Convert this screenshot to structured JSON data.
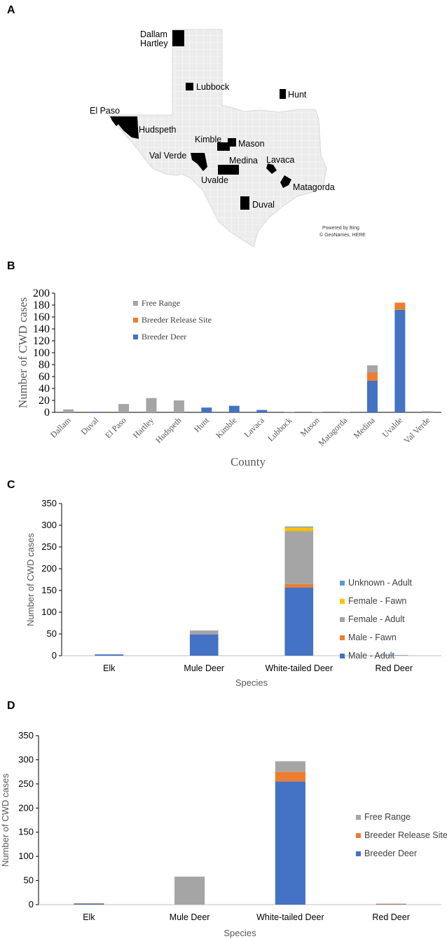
{
  "panels": {
    "a": {
      "letter": "A"
    },
    "b": {
      "letter": "B"
    },
    "c": {
      "letter": "C"
    },
    "d": {
      "letter": "D"
    }
  },
  "map": {
    "attribution_line1": "Powered by Bing",
    "attribution_line2": "© GeoNames, HERE",
    "counties": [
      {
        "name": "Dallam"
      },
      {
        "name": "Hartley"
      },
      {
        "name": "Lubbock"
      },
      {
        "name": "Hunt"
      },
      {
        "name": "El Paso"
      },
      {
        "name": "Hudspeth"
      },
      {
        "name": "Kimble"
      },
      {
        "name": "Mason"
      },
      {
        "name": "Val Verde"
      },
      {
        "name": "Medina"
      },
      {
        "name": "Lavaca"
      },
      {
        "name": "Uvalde"
      },
      {
        "name": "Matagorda"
      },
      {
        "name": "Duval"
      }
    ]
  },
  "colors": {
    "free_range": "#a5a5a5",
    "breeder_release": "#ed7d31",
    "breeder_deer": "#4472c4",
    "unknown_adult": "#5b9bd5",
    "female_fawn": "#ffc000",
    "female_adult": "#a5a5a5",
    "male_fawn": "#ed7d31",
    "male_adult": "#4472c4",
    "map_fill": "#ebebeb",
    "county_fill": "#000000"
  },
  "chart_data": [
    {
      "panel": "B",
      "type": "bar",
      "stacked": true,
      "xlabel": "County",
      "ylabel": "Number of CWD cases",
      "ylim": [
        0,
        200
      ],
      "yticks": [
        0,
        20,
        40,
        60,
        80,
        100,
        120,
        140,
        160,
        180,
        200
      ],
      "legend_position": "top-left",
      "categories": [
        "Dallam",
        "Duval",
        "El Paso",
        "Hartley",
        "Hudspeth",
        "Hunt",
        "Kimble",
        "Lavaca",
        "Lubbock",
        "Mason",
        "Matagorda",
        "Medina",
        "Uvalde",
        "Val Verde"
      ],
      "series": [
        {
          "name": "Breeder Deer",
          "values": [
            0,
            1,
            0,
            0,
            0,
            8,
            11,
            4,
            0,
            0,
            0,
            53,
            172,
            0
          ]
        },
        {
          "name": "Breeder Release Site",
          "values": [
            0,
            0,
            0,
            0,
            0,
            0,
            0,
            0,
            0,
            0,
            0,
            14,
            12,
            0
          ]
        },
        {
          "name": "Free Range",
          "values": [
            5,
            0,
            14,
            24,
            20,
            0,
            0,
            0,
            1,
            1,
            1,
            12,
            0,
            2
          ]
        }
      ],
      "legend_order": [
        "Free Range",
        "Breeder Release Site",
        "Breeder Deer"
      ]
    },
    {
      "panel": "C",
      "type": "bar",
      "stacked": true,
      "xlabel": "Species",
      "ylabel": "Number of CWD cases",
      "ylim": [
        0,
        350
      ],
      "yticks": [
        0,
        50,
        100,
        150,
        200,
        250,
        300,
        350
      ],
      "legend_position": "right",
      "categories": [
        "Elk",
        "Mule Deer",
        "White-tailed Deer",
        "Red Deer"
      ],
      "series": [
        {
          "name": "Male - Adult",
          "values": [
            3,
            49,
            157,
            1
          ]
        },
        {
          "name": "Male - Fawn",
          "values": [
            0,
            0,
            8,
            0
          ]
        },
        {
          "name": "Female - Adult",
          "values": [
            0,
            9,
            122,
            0
          ]
        },
        {
          "name": "Female - Fawn",
          "values": [
            0,
            0,
            8,
            0
          ]
        },
        {
          "name": "Unknown - Adult",
          "values": [
            0,
            0,
            2,
            0
          ]
        }
      ],
      "legend_order": [
        "Unknown - Adult",
        "Female - Fawn",
        "Female - Adult",
        "Male - Fawn",
        "Male - Adult"
      ]
    },
    {
      "panel": "D",
      "type": "bar",
      "stacked": true,
      "xlabel": "Species",
      "ylabel": "Number of CWD cases",
      "ylim": [
        0,
        350
      ],
      "yticks": [
        0,
        50,
        100,
        150,
        200,
        250,
        300,
        350
      ],
      "legend_position": "right",
      "categories": [
        "Elk",
        "Mule Deer",
        "White-tailed Deer",
        "Red Deer"
      ],
      "series": [
        {
          "name": "Breeder Deer",
          "values": [
            2,
            0,
            255,
            1
          ]
        },
        {
          "name": "Breeder Release Site",
          "values": [
            1,
            0,
            20,
            1
          ]
        },
        {
          "name": "Free Range",
          "values": [
            0,
            58,
            22,
            0
          ]
        }
      ],
      "legend_order": [
        "Free Range",
        "Breeder Release Site",
        "Breeder Deer"
      ]
    }
  ]
}
